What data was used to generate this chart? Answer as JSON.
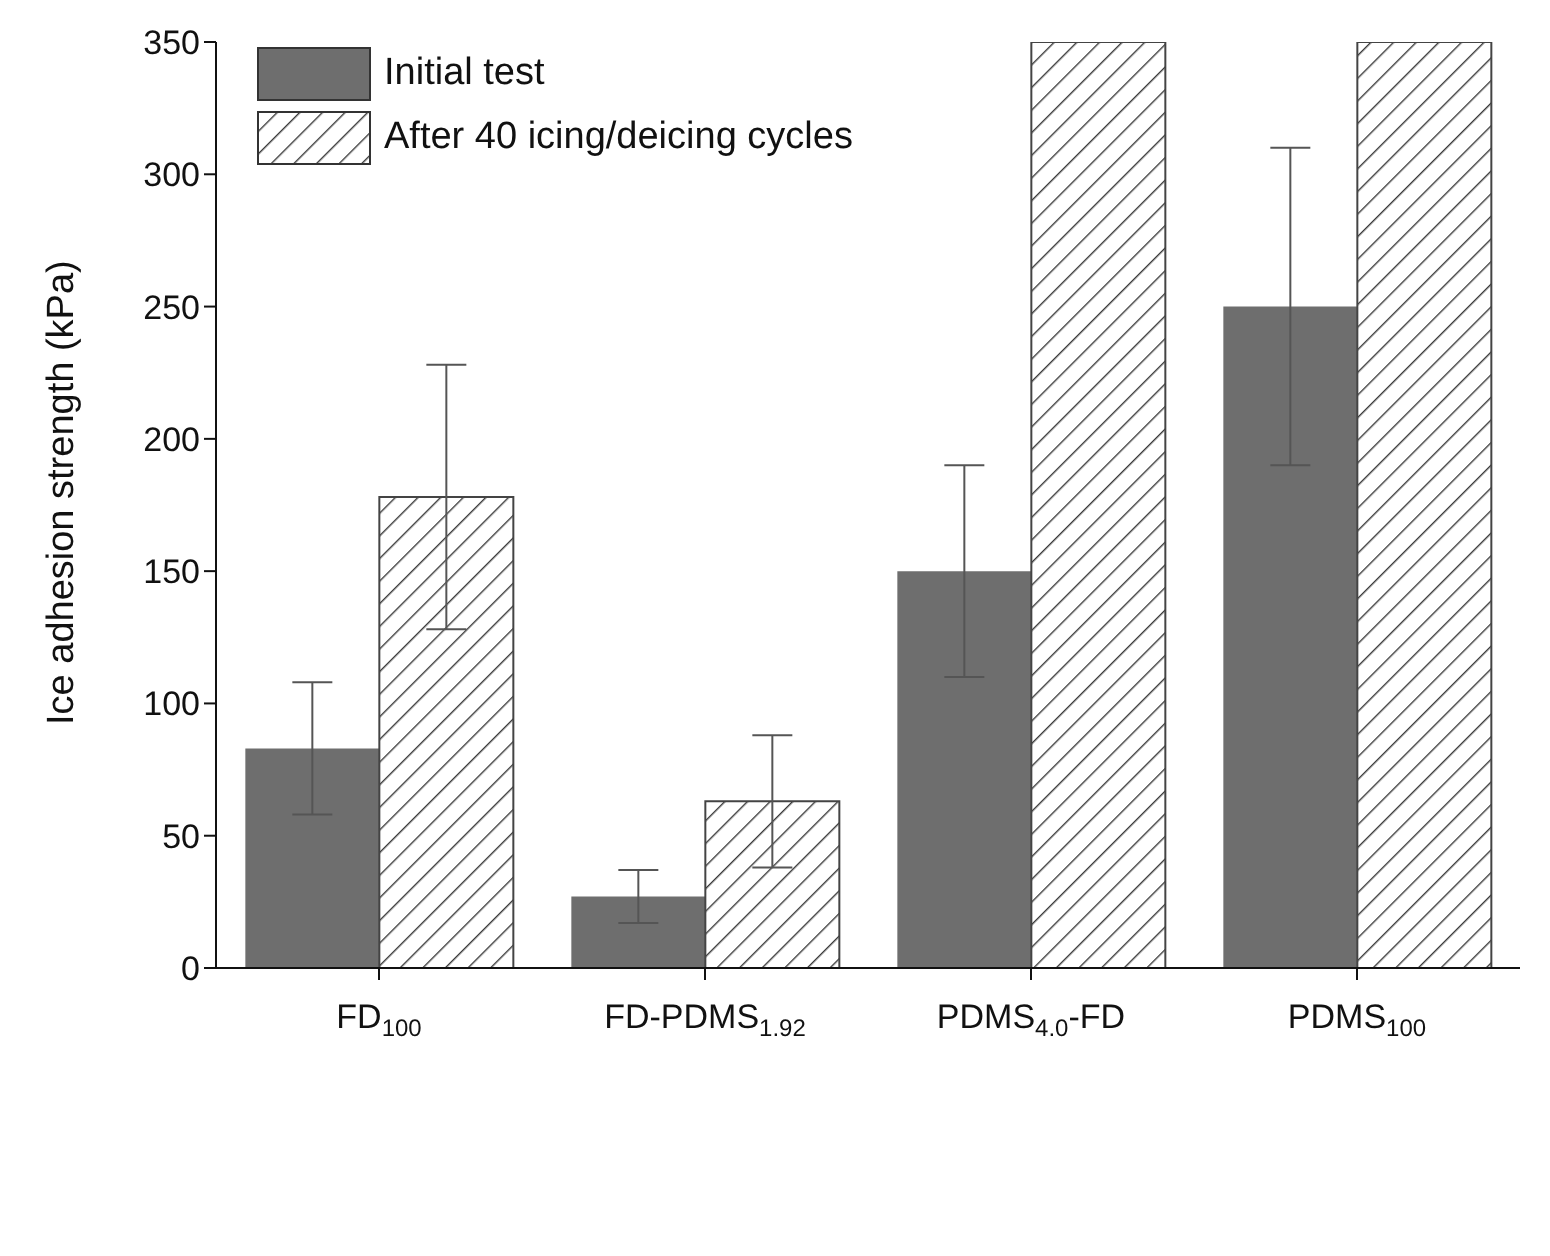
{
  "chart_data": {
    "type": "bar",
    "ylabel": "Ice adhesion strength (kPa)",
    "categories": [
      "FD$_{100}$",
      "FD-PDMS$_{1.92}$",
      "PDMS$_{4.0}$-FD",
      "PDMS$_{100}$"
    ],
    "series": [
      {
        "name": "Initial test",
        "color": "#6e6e6e",
        "values": [
          83,
          27,
          150,
          250
        ],
        "errors": [
          25,
          10,
          40,
          60
        ]
      },
      {
        "name": "After 40 icing/deicing cycles",
        "color": "#3a3a3a",
        "values": [
          178,
          63,
          350,
          350
        ],
        "errors": [
          50,
          25,
          null,
          null
        ]
      }
    ],
    "ylim": [
      0,
      350
    ],
    "yticks": [
      0,
      50,
      100,
      150,
      200,
      250,
      300,
      350
    ],
    "legend": "top left"
  }
}
